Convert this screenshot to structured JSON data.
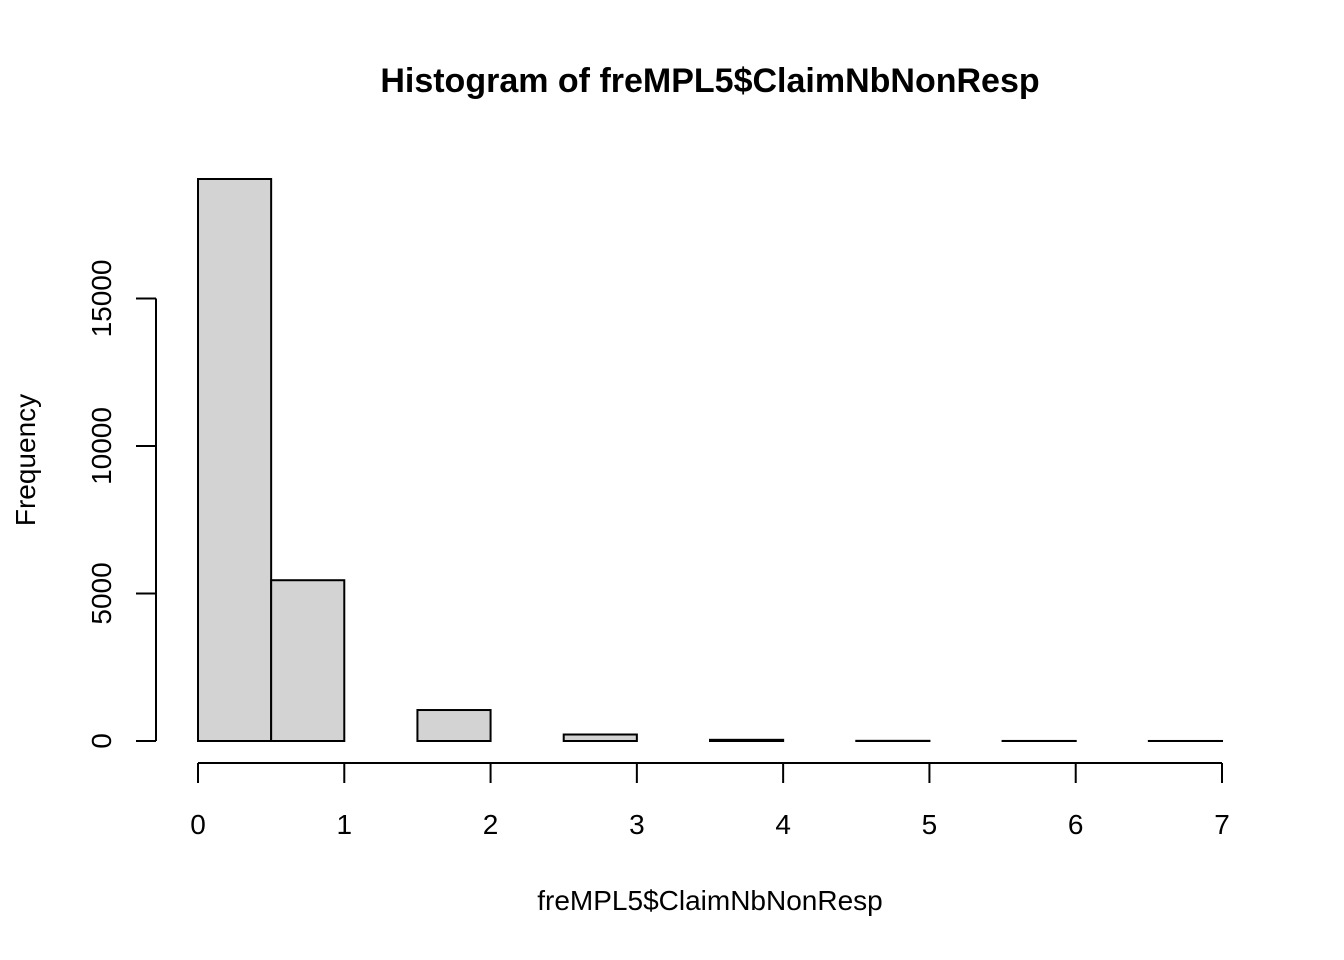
{
  "chart_data": {
    "type": "bar",
    "title": "Histogram of freMPL5$ClaimNbNonResp",
    "xlabel": "freMPL5$ClaimNbNonResp",
    "ylabel": "Frequency",
    "bins": [
      {
        "from": 0.0,
        "to": 0.5,
        "count": 19050
      },
      {
        "from": 0.5,
        "to": 1.0,
        "count": 5450
      },
      {
        "from": 1.0,
        "to": 1.5,
        "count": 0
      },
      {
        "from": 1.5,
        "to": 2.0,
        "count": 1050
      },
      {
        "from": 2.0,
        "to": 2.5,
        "count": 0
      },
      {
        "from": 2.5,
        "to": 3.0,
        "count": 220
      },
      {
        "from": 3.0,
        "to": 3.5,
        "count": 0
      },
      {
        "from": 3.5,
        "to": 4.0,
        "count": 40
      },
      {
        "from": 4.0,
        "to": 4.5,
        "count": 0
      },
      {
        "from": 4.5,
        "to": 5.0,
        "count": 6
      },
      {
        "from": 5.0,
        "to": 5.5,
        "count": 0
      },
      {
        "from": 5.5,
        "to": 6.0,
        "count": 2
      },
      {
        "from": 6.0,
        "to": 6.5,
        "count": 0
      },
      {
        "from": 6.5,
        "to": 7.0,
        "count": 1
      }
    ],
    "xlim": [
      0,
      7
    ],
    "ylim": [
      0,
      19050
    ],
    "x_ticks": [
      0,
      1,
      2,
      3,
      4,
      5,
      6,
      7
    ],
    "y_ticks": [
      0,
      5000,
      10000,
      15000
    ],
    "x_tick_labels": [
      "0",
      "1",
      "2",
      "3",
      "4",
      "5",
      "6",
      "7"
    ],
    "y_tick_labels": [
      "0",
      "5000",
      "10000",
      "15000"
    ],
    "grid": false,
    "bar_color": "#d3d3d3",
    "edge_color": "#000000"
  }
}
